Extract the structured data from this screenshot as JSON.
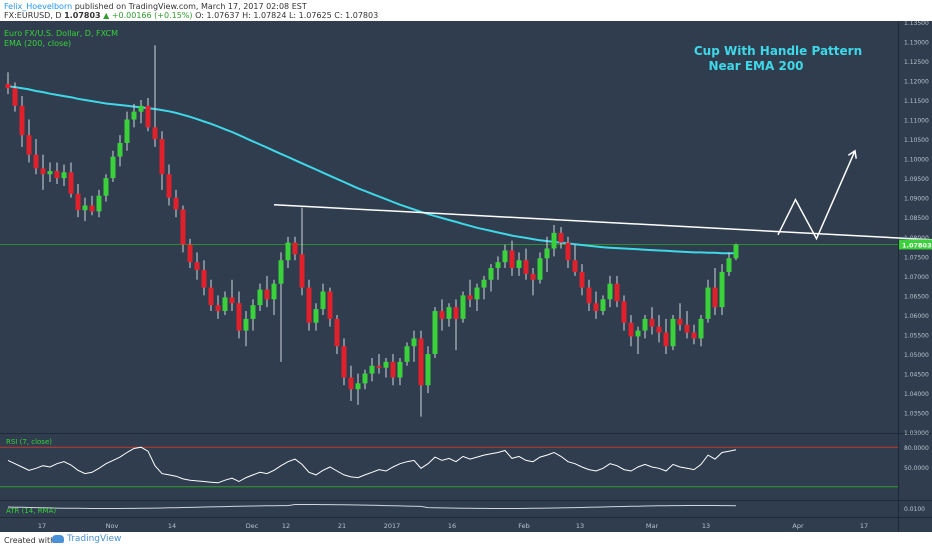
{
  "header": {
    "author": "Felix_Hoevelborn",
    "published": "published on TradingView.com, March 17, 2017 02:08 EST",
    "symbol": "FX:EURUSD, D",
    "last": "1.07803",
    "change": "▲ +0.00166 (+0.15%)",
    "ohlc": "O: 1.07637 H: 1.07824 L: 1.07625 C: 1.07803"
  },
  "footer": {
    "created_with": "Created with",
    "brand": "TradingView"
  },
  "chart_data": {
    "type": "candlestick",
    "title": "Euro FX/U.S. Dollar, D, FXCM",
    "indicator": "EMA (200, close)",
    "annotation": "Cup With Handle Pattern\nNear EMA 200",
    "last_price_label": "1.07803",
    "price_ticks": [
      "1.13500",
      "1.13000",
      "1.12500",
      "1.12000",
      "1.11500",
      "1.11000",
      "1.10500",
      "1.10000",
      "1.09500",
      "1.09000",
      "1.08500",
      "1.08000",
      "1.07500",
      "1.07000",
      "1.06500",
      "1.06000",
      "1.05500",
      "1.05000",
      "1.04500",
      "1.04000",
      "1.03500",
      "1.03000"
    ],
    "ylim": [
      1.0298,
      1.1352
    ],
    "x_labels": [
      "17",
      "Nov",
      "14",
      "Dec",
      "12",
      "21",
      "2017",
      "16",
      "Feb",
      "13",
      "Mar",
      "13",
      "Apr",
      "17"
    ],
    "colors": {
      "background": "#2f3d4e",
      "up": "#3ad13a",
      "down": "#e0202a",
      "ema": "#3fd8e8",
      "rsi": "#ffffff",
      "atr": "#cfd6de",
      "guide": "#2e8b2e",
      "annotation": "#3fd8e8"
    },
    "candles": [
      [
        1.1191,
        1.1221,
        1.1165,
        1.118
      ],
      [
        1.118,
        1.1195,
        1.112,
        1.1135
      ],
      [
        1.1135,
        1.116,
        1.103,
        1.106
      ],
      [
        1.106,
        1.11,
        1.099,
        1.101
      ],
      [
        1.101,
        1.105,
        1.096,
        1.0975
      ],
      [
        1.0975,
        1.101,
        1.092,
        1.096
      ],
      [
        1.096,
        1.099,
        1.094,
        1.0968
      ],
      [
        1.0968,
        1.099,
        1.0935,
        1.095
      ],
      [
        1.095,
        1.0985,
        1.093,
        1.0965
      ],
      [
        1.0965,
        1.099,
        1.09,
        1.091
      ],
      [
        1.091,
        1.0935,
        1.085,
        1.0868
      ],
      [
        1.0868,
        1.09,
        1.084,
        1.088
      ],
      [
        1.088,
        1.0905,
        1.0855,
        1.0865
      ],
      [
        1.0865,
        1.092,
        1.085,
        1.0905
      ],
      [
        1.0905,
        1.096,
        1.089,
        1.095
      ],
      [
        1.095,
        1.102,
        1.094,
        1.1005
      ],
      [
        1.1005,
        1.106,
        1.098,
        1.104
      ],
      [
        1.104,
        1.112,
        1.102,
        1.11
      ],
      [
        1.11,
        1.114,
        1.108,
        1.112
      ],
      [
        1.112,
        1.115,
        1.109,
        1.1135
      ],
      [
        1.1135,
        1.1155,
        1.107,
        1.108
      ],
      [
        1.108,
        1.129,
        1.103,
        1.105
      ],
      [
        1.105,
        1.107,
        1.092,
        1.096
      ],
      [
        1.096,
        1.0985,
        1.088,
        1.09
      ],
      [
        1.09,
        1.092,
        1.085,
        1.087
      ],
      [
        1.087,
        1.088,
        1.076,
        1.078
      ],
      [
        1.078,
        1.0795,
        1.072,
        1.0735
      ],
      [
        1.0735,
        1.076,
        1.069,
        1.0715
      ],
      [
        1.0715,
        1.074,
        1.065,
        1.067
      ],
      [
        1.067,
        1.069,
        1.061,
        1.0625
      ],
      [
        1.0625,
        1.065,
        1.059,
        1.061
      ],
      [
        1.061,
        1.066,
        1.06,
        1.0645
      ],
      [
        1.0645,
        1.069,
        1.061,
        1.063
      ],
      [
        1.063,
        1.066,
        1.054,
        1.056
      ],
      [
        1.056,
        1.061,
        1.052,
        1.059
      ],
      [
        1.059,
        1.064,
        1.056,
        1.0625
      ],
      [
        1.0625,
        1.068,
        1.061,
        1.0665
      ],
      [
        1.0665,
        1.07,
        1.062,
        1.064
      ],
      [
        1.064,
        1.069,
        1.06,
        1.068
      ],
      [
        1.068,
        1.076,
        1.048,
        1.074
      ],
      [
        1.074,
        1.08,
        1.072,
        1.0785
      ],
      [
        1.0785,
        1.08,
        1.074,
        1.0755
      ],
      [
        1.0755,
        1.0875,
        1.065,
        1.067
      ],
      [
        1.067,
        1.069,
        1.056,
        1.058
      ],
      [
        1.058,
        1.063,
        1.056,
        1.0615
      ],
      [
        1.0615,
        1.068,
        1.06,
        1.066
      ],
      [
        1.066,
        1.067,
        1.057,
        1.059
      ],
      [
        1.059,
        1.06,
        1.05,
        1.052
      ],
      [
        1.052,
        1.054,
        1.042,
        1.044
      ],
      [
        1.044,
        1.047,
        1.038,
        1.041
      ],
      [
        1.041,
        1.045,
        1.037,
        1.0425
      ],
      [
        1.0425,
        1.046,
        1.041,
        1.045
      ],
      [
        1.045,
        1.049,
        1.043,
        1.047
      ],
      [
        1.047,
        1.05,
        1.045,
        1.0465
      ],
      [
        1.0465,
        1.049,
        1.044,
        1.048
      ],
      [
        1.048,
        1.05,
        1.042,
        1.044
      ],
      [
        1.044,
        1.049,
        1.042,
        1.048
      ],
      [
        1.048,
        1.053,
        1.047,
        1.052
      ],
      [
        1.052,
        1.056,
        1.048,
        1.054
      ],
      [
        1.054,
        1.056,
        1.034,
        1.042
      ],
      [
        1.042,
        1.052,
        1.04,
        1.05
      ],
      [
        1.05,
        1.062,
        1.049,
        1.061
      ],
      [
        1.061,
        1.064,
        1.056,
        1.059
      ],
      [
        1.059,
        1.063,
        1.057,
        1.062
      ],
      [
        1.062,
        1.064,
        1.051,
        1.059
      ],
      [
        1.059,
        1.066,
        1.058,
        1.065
      ],
      [
        1.065,
        1.069,
        1.062,
        1.064
      ],
      [
        1.064,
        1.068,
        1.061,
        1.067
      ],
      [
        1.067,
        1.07,
        1.064,
        1.069
      ],
      [
        1.069,
        1.073,
        1.066,
        1.072
      ],
      [
        1.072,
        1.075,
        1.069,
        1.0735
      ],
      [
        1.0735,
        1.078,
        1.072,
        1.0765
      ],
      [
        1.0765,
        1.079,
        1.07,
        1.072
      ],
      [
        1.072,
        1.076,
        1.07,
        1.074
      ],
      [
        1.074,
        1.077,
        1.069,
        1.0705
      ],
      [
        1.0705,
        1.072,
        1.065,
        1.069
      ],
      [
        1.069,
        1.076,
        1.068,
        1.0745
      ],
      [
        1.0745,
        1.08,
        1.071,
        1.077
      ],
      [
        1.077,
        1.083,
        1.075,
        1.081
      ],
      [
        1.081,
        1.0825,
        1.077,
        1.0785
      ],
      [
        1.0785,
        1.08,
        1.072,
        1.074
      ],
      [
        1.074,
        1.078,
        1.07,
        1.071
      ],
      [
        1.071,
        1.073,
        1.065,
        1.067
      ],
      [
        1.067,
        1.069,
        1.061,
        1.063
      ],
      [
        1.063,
        1.066,
        1.059,
        1.061
      ],
      [
        1.061,
        1.065,
        1.06,
        1.064
      ],
      [
        1.064,
        1.07,
        1.062,
        1.068
      ],
      [
        1.068,
        1.07,
        1.062,
        1.0635
      ],
      [
        1.0635,
        1.065,
        1.056,
        1.058
      ],
      [
        1.058,
        1.06,
        1.052,
        1.0545
      ],
      [
        1.0545,
        1.057,
        1.05,
        1.056
      ],
      [
        1.056,
        1.06,
        1.054,
        1.059
      ],
      [
        1.059,
        1.062,
        1.055,
        1.057
      ],
      [
        1.057,
        1.06,
        1.053,
        1.0555
      ],
      [
        1.0555,
        1.059,
        1.05,
        1.052
      ],
      [
        1.052,
        1.06,
        1.051,
        1.059
      ],
      [
        1.059,
        1.063,
        1.056,
        1.0575
      ],
      [
        1.0575,
        1.061,
        1.054,
        1.0555
      ],
      [
        1.0555,
        1.0575,
        1.0525,
        1.054
      ],
      [
        1.054,
        1.06,
        1.052,
        1.059
      ],
      [
        1.059,
        1.069,
        1.058,
        1.067
      ],
      [
        1.067,
        1.072,
        1.06,
        1.062
      ],
      [
        1.062,
        1.073,
        1.06,
        1.071
      ],
      [
        1.071,
        1.076,
        1.07,
        1.0745
      ],
      [
        1.0745,
        1.0782,
        1.074,
        1.078
      ]
    ],
    "ema": [
      1.1185,
      1.1183,
      1.118,
      1.1177,
      1.1173,
      1.117,
      1.1166,
      1.1163,
      1.116,
      1.1157,
      1.1153,
      1.115,
      1.1147,
      1.1144,
      1.1141,
      1.1139,
      1.1137,
      1.1135,
      1.1133,
      1.1131,
      1.1129,
      1.1127,
      1.1124,
      1.1121,
      1.1117,
      1.1112,
      1.1107,
      1.1101,
      1.1095,
      1.1089,
      1.1082,
      1.1075,
      1.1068,
      1.106,
      1.1052,
      1.1044,
      1.1036,
      1.1028,
      1.102,
      1.1012,
      1.1004,
      1.0996,
      1.0988,
      1.098,
      1.0972,
      1.0964,
      1.0956,
      1.0948,
      1.094,
      1.0932,
      1.0924,
      1.0917,
      1.091,
      1.0903,
      1.0896,
      1.0889,
      1.0882,
      1.0876,
      1.087,
      1.0864,
      1.0858,
      1.0853,
      1.0848,
      1.0843,
      1.0838,
      1.0833,
      1.0828,
      1.0823,
      1.0819,
      1.0815,
      1.0811,
      1.0807,
      1.0803,
      1.08,
      1.0797,
      1.0794,
      1.0791,
      1.0789,
      1.0787,
      1.0785,
      1.0783,
      1.0781,
      1.0779,
      1.0777,
      1.0775,
      1.0773,
      1.0772,
      1.0771,
      1.077,
      1.0769,
      1.0768,
      1.0767,
      1.0766,
      1.0765,
      1.0764,
      1.0763,
      1.0762,
      1.0761,
      1.076,
      1.076,
      1.0759,
      1.0759,
      1.0758,
      1.0758,
      1.0758
    ],
    "trendline": {
      "from": [
        38,
        1.0882
      ],
      "to": [
        145,
        1.078
      ]
    },
    "projection": [
      [
        110,
        1.0805
      ],
      [
        112.5,
        1.0895
      ],
      [
        115.5,
        1.0795
      ],
      [
        121,
        1.102
      ]
    ],
    "rsi": {
      "label": "RSI (7, close)",
      "ticks": [
        "80.0000",
        "50.0000"
      ],
      "values": [
        60,
        55,
        50,
        45,
        48,
        52,
        50,
        55,
        58,
        53,
        45,
        40,
        42,
        48,
        55,
        60,
        65,
        72,
        78,
        80,
        74,
        52,
        40,
        38,
        36,
        32,
        30,
        29,
        28,
        27,
        26,
        30,
        33,
        28,
        34,
        38,
        42,
        40,
        45,
        52,
        58,
        62,
        54,
        42,
        38,
        45,
        50,
        44,
        38,
        35,
        34,
        38,
        42,
        46,
        44,
        50,
        55,
        58,
        60,
        48,
        55,
        65,
        60,
        63,
        58,
        66,
        62,
        65,
        68,
        70,
        72,
        75,
        63,
        66,
        60,
        58,
        65,
        68,
        72,
        66,
        58,
        55,
        50,
        46,
        44,
        48,
        55,
        52,
        46,
        44,
        50,
        54,
        50,
        48,
        44,
        54,
        50,
        48,
        46,
        54,
        68,
        62,
        72,
        74,
        76
      ]
    },
    "atr": {
      "label": "ATR (14, RMA)",
      "tick": "0.0100"
    }
  }
}
